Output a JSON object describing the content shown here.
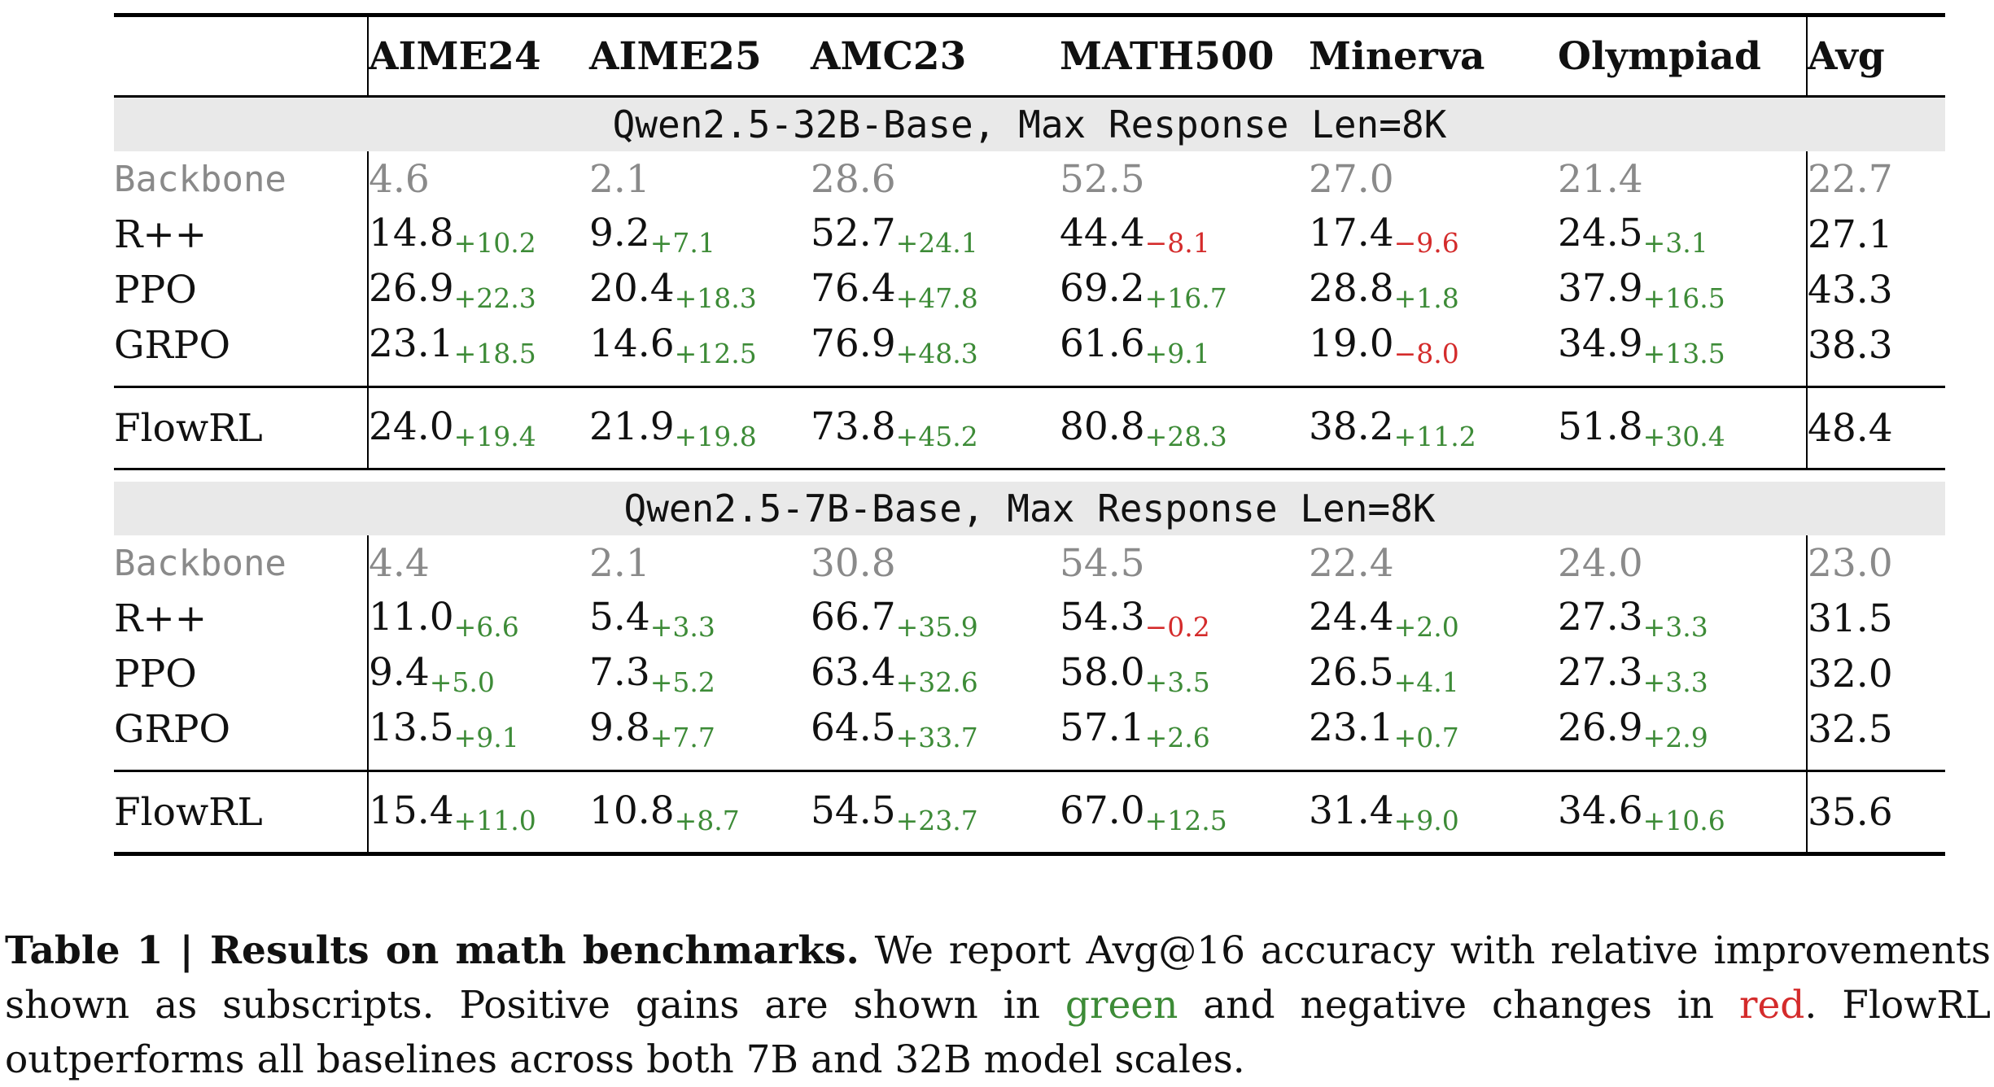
{
  "table": {
    "columns": [
      "",
      "AIME24",
      "AIME25",
      "AMC23",
      "MATH500",
      "Minerva",
      "Olympiad",
      "Avg"
    ],
    "sections": [
      {
        "title": "Qwen2.5-32B-Base, Max Response Len=8K",
        "rows": [
          {
            "method": "Backbone",
            "cells": [
              {
                "v": "4.6",
                "d": ""
              },
              {
                "v": "2.1",
                "d": ""
              },
              {
                "v": "28.6",
                "d": ""
              },
              {
                "v": "52.5",
                "d": ""
              },
              {
                "v": "27.0",
                "d": ""
              },
              {
                "v": "21.4",
                "d": ""
              }
            ],
            "avg": "22.7"
          },
          {
            "method": "R++",
            "cells": [
              {
                "v": "14.8",
                "d": "+10.2"
              },
              {
                "v": "9.2",
                "d": "+7.1"
              },
              {
                "v": "52.7",
                "d": "+24.1"
              },
              {
                "v": "44.4",
                "d": "−8.1"
              },
              {
                "v": "17.4",
                "d": "−9.6"
              },
              {
                "v": "24.5",
                "d": "+3.1"
              }
            ],
            "avg": "27.1"
          },
          {
            "method": "PPO",
            "cells": [
              {
                "v": "26.9",
                "d": "+22.3"
              },
              {
                "v": "20.4",
                "d": "+18.3"
              },
              {
                "v": "76.4",
                "d": "+47.8"
              },
              {
                "v": "69.2",
                "d": "+16.7"
              },
              {
                "v": "28.8",
                "d": "+1.8"
              },
              {
                "v": "37.9",
                "d": "+16.5"
              }
            ],
            "avg": "43.3"
          },
          {
            "method": "GRPO",
            "cells": [
              {
                "v": "23.1",
                "d": "+18.5"
              },
              {
                "v": "14.6",
                "d": "+12.5"
              },
              {
                "v": "76.9",
                "d": "+48.3"
              },
              {
                "v": "61.6",
                "d": "+9.1"
              },
              {
                "v": "19.0",
                "d": "−8.0"
              },
              {
                "v": "34.9",
                "d": "+13.5"
              }
            ],
            "avg": "38.3"
          }
        ],
        "flow": {
          "method": "FlowRL",
          "cells": [
            {
              "v": "24.0",
              "d": "+19.4"
            },
            {
              "v": "21.9",
              "d": "+19.8"
            },
            {
              "v": "73.8",
              "d": "+45.2"
            },
            {
              "v": "80.8",
              "d": "+28.3"
            },
            {
              "v": "38.2",
              "d": "+11.2"
            },
            {
              "v": "51.8",
              "d": "+30.4"
            }
          ],
          "avg": "48.4"
        }
      },
      {
        "title": "Qwen2.5-7B-Base, Max Response Len=8K",
        "rows": [
          {
            "method": "Backbone",
            "cells": [
              {
                "v": "4.4",
                "d": ""
              },
              {
                "v": "2.1",
                "d": ""
              },
              {
                "v": "30.8",
                "d": ""
              },
              {
                "v": "54.5",
                "d": ""
              },
              {
                "v": "22.4",
                "d": ""
              },
              {
                "v": "24.0",
                "d": ""
              }
            ],
            "avg": "23.0"
          },
          {
            "method": "R++",
            "cells": [
              {
                "v": "11.0",
                "d": "+6.6"
              },
              {
                "v": "5.4",
                "d": "+3.3"
              },
              {
                "v": "66.7",
                "d": "+35.9"
              },
              {
                "v": "54.3",
                "d": "−0.2"
              },
              {
                "v": "24.4",
                "d": "+2.0"
              },
              {
                "v": "27.3",
                "d": "+3.3"
              }
            ],
            "avg": "31.5"
          },
          {
            "method": "PPO",
            "cells": [
              {
                "v": "9.4",
                "d": "+5.0"
              },
              {
                "v": "7.3",
                "d": "+5.2"
              },
              {
                "v": "63.4",
                "d": "+32.6"
              },
              {
                "v": "58.0",
                "d": "+3.5"
              },
              {
                "v": "26.5",
                "d": "+4.1"
              },
              {
                "v": "27.3",
                "d": "+3.3"
              }
            ],
            "avg": "32.0"
          },
          {
            "method": "GRPO",
            "cells": [
              {
                "v": "13.5",
                "d": "+9.1"
              },
              {
                "v": "9.8",
                "d": "+7.7"
              },
              {
                "v": "64.5",
                "d": "+33.7"
              },
              {
                "v": "57.1",
                "d": "+2.6"
              },
              {
                "v": "23.1",
                "d": "+0.7"
              },
              {
                "v": "26.9",
                "d": "+2.9"
              }
            ],
            "avg": "32.5"
          }
        ],
        "flow": {
          "method": "FlowRL",
          "cells": [
            {
              "v": "15.4",
              "d": "+11.0"
            },
            {
              "v": "10.8",
              "d": "+8.7"
            },
            {
              "v": "54.5",
              "d": "+23.7"
            },
            {
              "v": "67.0",
              "d": "+12.5"
            },
            {
              "v": "31.4",
              "d": "+9.0"
            },
            {
              "v": "34.6",
              "d": "+10.6"
            }
          ],
          "avg": "35.6"
        }
      }
    ]
  },
  "caption": {
    "label": "Table 1 | Results on math benchmarks.",
    "text_1": " We report Avg@16 accuracy with relative improvements shown as subscripts. Positive gains are shown in ",
    "green_word": "green",
    "text_2": " and negative changes in ",
    "red_word": "red",
    "text_3": ". FlowRL outperforms all baselines across both 7B and 32B model scales."
  },
  "colors": {
    "positive": "#3d8b37",
    "negative": "#d42b2b",
    "backbone": "#8a8a8a",
    "section_bg": "#e9e9e9"
  }
}
